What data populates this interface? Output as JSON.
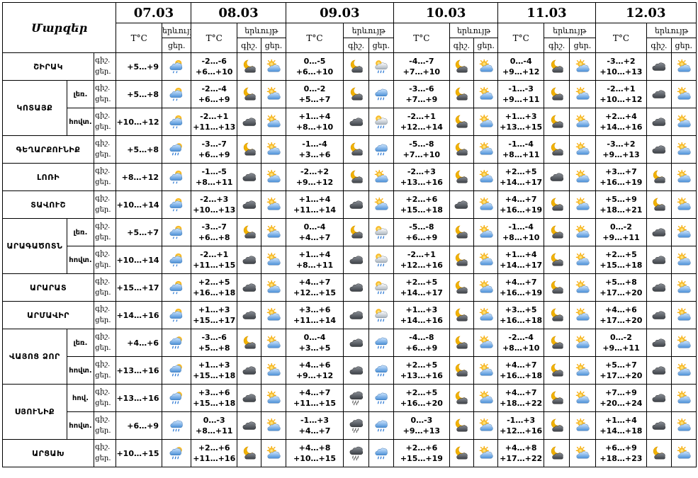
{
  "header": {
    "title": "Մարզեր",
    "tc_label": "T°C",
    "precip_label": "երևույթ",
    "night_label": "գիշ.",
    "day_label": "ցեր."
  },
  "dates": [
    "07.03",
    "08.03",
    "09.03",
    "10.03",
    "11.03",
    "12.03"
  ],
  "day1_precip": {
    "line1": "երևույթ",
    "line2": "ցեր."
  },
  "rows": [
    {
      "region": "ՇԻՐԱԿ",
      "sub": "",
      "d1": {
        "temp": "+5…+9",
        "icon": "partly-cloudy-rain-icon"
      },
      "days": [
        {
          "t_night": "-2…-6",
          "t_day": "+6…+10",
          "icons": [
            "moon-cloud-icon",
            "sun-cloud-icon"
          ]
        },
        {
          "t_night": "0…-5",
          "t_day": "+6…+10",
          "icons": [
            "moon-cloud-icon",
            "sun-cloud-rain-icon"
          ]
        },
        {
          "t_night": "-4…-7",
          "t_day": "+7…+10",
          "icons": [
            "moon-cloud-icon",
            "sun-cloud-icon"
          ]
        },
        {
          "t_night": "0…-4",
          "t_day": "+9…+12",
          "icons": [
            "moon-cloud-icon",
            "sun-cloud-icon"
          ]
        },
        {
          "t_night": "-3…+2",
          "t_day": "+10…+13",
          "icons": [
            "cloud-icon",
            "sun-cloud-icon"
          ]
        }
      ]
    },
    {
      "region": "ԿՈՏԱՅՔ",
      "sub": "լեռ.",
      "d1": {
        "temp": "+5…+8",
        "icon": "partly-cloudy-rain-icon"
      },
      "days": [
        {
          "t_night": "-2…-4",
          "t_day": "+6…+9",
          "icons": [
            "moon-cloud-icon",
            "sun-cloud-icon"
          ]
        },
        {
          "t_night": "0…-2",
          "t_day": "+5…+7",
          "icons": [
            "moon-cloud-icon",
            "rain-cloud-icon"
          ]
        },
        {
          "t_night": "-3…-6",
          "t_day": "+7…+9",
          "icons": [
            "moon-cloud-icon",
            "sun-cloud-icon"
          ]
        },
        {
          "t_night": "-1…-3",
          "t_day": "+9…+11",
          "icons": [
            "moon-cloud-icon",
            "sun-cloud-icon"
          ]
        },
        {
          "t_night": "-2…+1",
          "t_day": "+10…+12",
          "icons": [
            "cloud-icon",
            "sun-cloud-icon"
          ]
        }
      ]
    },
    {
      "region": "",
      "sub": "հովտ.",
      "d1": {
        "temp": "+10…+12",
        "icon": "partly-cloudy-rain-icon"
      },
      "days": [
        {
          "t_night": "-2…+1",
          "t_day": "+11…+13",
          "icons": [
            "cloud-icon",
            "sun-cloud-icon"
          ]
        },
        {
          "t_night": "+1…+4",
          "t_day": "+8…+10",
          "icons": [
            "cloud-icon",
            "sun-cloud-rain-icon"
          ]
        },
        {
          "t_night": "-2…+1",
          "t_day": "+12…+14",
          "icons": [
            "moon-cloud-icon",
            "sun-cloud-icon"
          ]
        },
        {
          "t_night": "+1…+3",
          "t_day": "+13…+15",
          "icons": [
            "moon-cloud-icon",
            "sun-cloud-icon"
          ]
        },
        {
          "t_night": "+2…+4",
          "t_day": "+14…+16",
          "icons": [
            "cloud-icon",
            "sun-cloud-icon"
          ]
        }
      ]
    },
    {
      "region": "ԳԵՂԱՐՔՈՒՆԻՔ",
      "sub": "",
      "d1": {
        "temp": "+5…+8",
        "icon": "sun-rain-icon"
      },
      "days": [
        {
          "t_night": "-3…-7",
          "t_day": "+6…+9",
          "icons": [
            "moon-cloud-icon",
            "sun-cloud-icon"
          ]
        },
        {
          "t_night": "-1…-4",
          "t_day": "+3…+6",
          "icons": [
            "moon-cloud-icon",
            "rain-cloud-icon"
          ]
        },
        {
          "t_night": "-5…-8",
          "t_day": "+7…+10",
          "icons": [
            "moon-cloud-icon",
            "sun-cloud-icon"
          ]
        },
        {
          "t_night": "-1…-4",
          "t_day": "+8…+11",
          "icons": [
            "moon-cloud-icon",
            "sun-cloud-icon"
          ]
        },
        {
          "t_night": "-3…+2",
          "t_day": "+9…+13",
          "icons": [
            "cloud-icon",
            "sun-cloud-icon"
          ]
        }
      ]
    },
    {
      "region": "ԼՈՌԻ",
      "sub": "",
      "d1": {
        "temp": "+8…+12",
        "icon": "partly-cloudy-rain-icon"
      },
      "days": [
        {
          "t_night": "-1…-5",
          "t_day": "+8…+11",
          "icons": [
            "cloud-icon",
            "sun-cloud-icon"
          ]
        },
        {
          "t_night": "-2…+2",
          "t_day": "+9…+12",
          "icons": [
            "moon-cloud-icon",
            "sun-cloud-icon"
          ]
        },
        {
          "t_night": "-2…+3",
          "t_day": "+13…+16",
          "icons": [
            "moon-cloud-icon",
            "sun-cloud-icon"
          ]
        },
        {
          "t_night": "+2…+5",
          "t_day": "+14…+17",
          "icons": [
            "cloud-icon",
            "sun-cloud-icon"
          ]
        },
        {
          "t_night": "+3…+7",
          "t_day": "+16…+19",
          "icons": [
            "moon-cloud-icon",
            "sun-cloud-icon"
          ]
        }
      ]
    },
    {
      "region": "ՏԱՎՈՒՇ",
      "sub": "",
      "d1": {
        "temp": "+10…+14",
        "icon": "partly-cloudy-rain-icon"
      },
      "days": [
        {
          "t_night": "-2…+3",
          "t_day": "+10…+13",
          "icons": [
            "cloud-icon",
            "sun-cloud-icon"
          ]
        },
        {
          "t_night": "+1…+4",
          "t_day": "+11…+14",
          "icons": [
            "cloud-icon",
            "sun-cloud-icon"
          ]
        },
        {
          "t_night": "+2…+6",
          "t_day": "+15…+18",
          "icons": [
            "cloud-icon",
            "sun-cloud-icon"
          ]
        },
        {
          "t_night": "+4…+7",
          "t_day": "+16…+19",
          "icons": [
            "moon-cloud-icon",
            "sun-cloud-icon"
          ]
        },
        {
          "t_night": "+5…+9",
          "t_day": "+18…+21",
          "icons": [
            "moon-cloud-icon",
            "sun-cloud-icon"
          ]
        }
      ]
    },
    {
      "region": "ԱՐԱԳԱԾՈՏՆ",
      "sub": "լեռ.",
      "d1": {
        "temp": "+5…+7",
        "icon": "partly-cloudy-rain-icon"
      },
      "days": [
        {
          "t_night": "-3…-7",
          "t_day": "+6…+8",
          "icons": [
            "moon-cloud-icon",
            "sun-cloud-icon"
          ]
        },
        {
          "t_night": "0…-4",
          "t_day": "+4…+7",
          "icons": [
            "moon-cloud-icon",
            "sun-cloud-rain-icon"
          ]
        },
        {
          "t_night": "-5…-8",
          "t_day": "+6…+9",
          "icons": [
            "moon-cloud-icon",
            "sun-cloud-icon"
          ]
        },
        {
          "t_night": "-1…-4",
          "t_day": "+8…+10",
          "icons": [
            "moon-cloud-icon",
            "sun-cloud-icon"
          ]
        },
        {
          "t_night": "0…-2",
          "t_day": "+9…+11",
          "icons": [
            "cloud-icon",
            "sun-cloud-icon"
          ]
        }
      ]
    },
    {
      "region": "",
      "sub": "հովտ.",
      "d1": {
        "temp": "+10…+14",
        "icon": "partly-cloudy-rain-icon"
      },
      "days": [
        {
          "t_night": "-2…+1",
          "t_day": "+11…+15",
          "icons": [
            "cloud-icon",
            "sun-cloud-icon"
          ]
        },
        {
          "t_night": "+1…+4",
          "t_day": "+8…+11",
          "icons": [
            "cloud-icon",
            "sun-cloud-rain-icon"
          ]
        },
        {
          "t_night": "-2…+1",
          "t_day": "+12…+16",
          "icons": [
            "moon-cloud-icon",
            "sun-cloud-icon"
          ]
        },
        {
          "t_night": "+1…+4",
          "t_day": "+14…+17",
          "icons": [
            "moon-cloud-icon",
            "sun-cloud-icon"
          ]
        },
        {
          "t_night": "+2…+5",
          "t_day": "+15…+18",
          "icons": [
            "cloud-icon",
            "sun-cloud-icon"
          ]
        }
      ]
    },
    {
      "region": "ԱՐԱՐԱՏ",
      "sub": "",
      "d1": {
        "temp": "+15…+17",
        "icon": "partly-cloudy-rain-icon"
      },
      "days": [
        {
          "t_night": "+2…+5",
          "t_day": "+16…+18",
          "icons": [
            "cloud-icon",
            "sun-cloud-icon"
          ]
        },
        {
          "t_night": "+4…+7",
          "t_day": "+12…+15",
          "icons": [
            "cloud-icon",
            "sun-cloud-rain-icon"
          ]
        },
        {
          "t_night": "+2…+5",
          "t_day": "+14…+17",
          "icons": [
            "moon-cloud-icon",
            "sun-cloud-icon"
          ]
        },
        {
          "t_night": "+4…+7",
          "t_day": "+16…+19",
          "icons": [
            "moon-cloud-icon",
            "sun-cloud-icon"
          ]
        },
        {
          "t_night": "+5…+8",
          "t_day": "+17…+20",
          "icons": [
            "cloud-icon",
            "sun-cloud-icon"
          ]
        }
      ]
    },
    {
      "region": "ԱՐՄԱՎԻՐ",
      "sub": "",
      "d1": {
        "temp": "+14…+16",
        "icon": "partly-cloudy-rain-icon"
      },
      "days": [
        {
          "t_night": "+1…+3",
          "t_day": "+15…+17",
          "icons": [
            "cloud-icon",
            "sun-cloud-icon"
          ]
        },
        {
          "t_night": "+3…+6",
          "t_day": "+11…+14",
          "icons": [
            "cloud-icon",
            "sun-cloud-rain-icon"
          ]
        },
        {
          "t_night": "+1…+3",
          "t_day": "+14…+16",
          "icons": [
            "moon-cloud-icon",
            "sun-cloud-icon"
          ]
        },
        {
          "t_night": "+3…+5",
          "t_day": "+16…+18",
          "icons": [
            "moon-cloud-icon",
            "sun-cloud-icon"
          ]
        },
        {
          "t_night": "+4…+6",
          "t_day": "+17…+20",
          "icons": [
            "cloud-icon",
            "sun-cloud-icon"
          ]
        }
      ]
    },
    {
      "region": "ՎԱՅՈՑ ՁՈՐ",
      "sub": "լեռ.",
      "d1": {
        "temp": "+4…+6",
        "icon": "sun-rain-icon"
      },
      "days": [
        {
          "t_night": "-3…-6",
          "t_day": "+5…+8",
          "icons": [
            "moon-cloud-icon",
            "sun-cloud-icon"
          ]
        },
        {
          "t_night": "0…-4",
          "t_day": "+3…+5",
          "icons": [
            "cloud-icon",
            "rain-cloud-icon"
          ]
        },
        {
          "t_night": "-4…-8",
          "t_day": "+6…+9",
          "icons": [
            "moon-cloud-icon",
            "sun-cloud-icon"
          ]
        },
        {
          "t_night": "-2…-4",
          "t_day": "+8…+10",
          "icons": [
            "moon-cloud-icon",
            "sun-cloud-icon"
          ]
        },
        {
          "t_night": "0…-2",
          "t_day": "+9…+11",
          "icons": [
            "cloud-icon",
            "sun-cloud-icon"
          ]
        }
      ]
    },
    {
      "region": "",
      "sub": "հովտ.",
      "d1": {
        "temp": "+13…+16",
        "icon": "sun-rain-icon"
      },
      "days": [
        {
          "t_night": "+1…+3",
          "t_day": "+15…+18",
          "icons": [
            "cloud-icon",
            "sun-cloud-icon"
          ]
        },
        {
          "t_night": "+4…+6",
          "t_day": "+9…+12",
          "icons": [
            "cloud-icon",
            "rain-cloud-icon"
          ]
        },
        {
          "t_night": "+2…+5",
          "t_day": "+13…+16",
          "icons": [
            "moon-cloud-icon",
            "sun-cloud-icon"
          ]
        },
        {
          "t_night": "+4…+7",
          "t_day": "+16…+18",
          "icons": [
            "moon-cloud-icon",
            "sun-cloud-icon"
          ]
        },
        {
          "t_night": "+5…+7",
          "t_day": "+17…+20",
          "icons": [
            "cloud-icon",
            "sun-cloud-icon"
          ]
        }
      ]
    },
    {
      "region": "ՍՅՈՒՆԻՔ",
      "sub": "հով.",
      "d1": {
        "temp": "+13…+16",
        "icon": "sun-rain-icon"
      },
      "days": [
        {
          "t_night": "+3…+6",
          "t_day": "+15…+18",
          "icons": [
            "cloud-icon",
            "sun-cloud-icon"
          ]
        },
        {
          "t_night": "+4…+7",
          "t_day": "+11…+15",
          "icons": [
            "storm-cloud-icon",
            "rain-cloud-icon"
          ]
        },
        {
          "t_night": "+2…+5",
          "t_day": "+16…+20",
          "icons": [
            "moon-cloud-icon",
            "sun-cloud-icon"
          ]
        },
        {
          "t_night": "+4…+7",
          "t_day": "+18…+22",
          "icons": [
            "moon-cloud-icon",
            "sun-cloud-icon"
          ]
        },
        {
          "t_night": "+7…+9",
          "t_day": "+20…+24",
          "icons": [
            "cloud-icon",
            "sun-cloud-icon"
          ]
        }
      ]
    },
    {
      "region": "",
      "sub": "հովտ.",
      "d1": {
        "temp": "+6…+9",
        "icon": "rain-cloud-icon"
      },
      "days": [
        {
          "t_night": "0…-3",
          "t_day": "+8…+11",
          "icons": [
            "cloud-icon",
            "sun-cloud-icon"
          ]
        },
        {
          "t_night": "-1…+3",
          "t_day": "+4…+7",
          "icons": [
            "storm-cloud-icon",
            "rain-cloud-icon"
          ]
        },
        {
          "t_night": "0…-3",
          "t_day": "+9…+13",
          "icons": [
            "moon-cloud-icon",
            "sun-cloud-icon"
          ]
        },
        {
          "t_night": "-1…+3",
          "t_day": "+12…+16",
          "icons": [
            "moon-cloud-icon",
            "sun-cloud-icon"
          ]
        },
        {
          "t_night": "+1…+4",
          "t_day": "+14…+18",
          "icons": [
            "cloud-icon",
            "sun-cloud-icon"
          ]
        }
      ]
    },
    {
      "region": "ԱՐՑԱԽ",
      "sub": "",
      "d1": {
        "temp": "+10…+15",
        "icon": "sun-rain-icon"
      },
      "days": [
        {
          "t_night": "+2…+6",
          "t_day": "+11…+16",
          "icons": [
            "moon-cloud-icon",
            "sun-cloud-icon"
          ]
        },
        {
          "t_night": "+4…+8",
          "t_day": "+10…+15",
          "icons": [
            "storm-cloud-icon",
            "rain-cloud-icon"
          ]
        },
        {
          "t_night": "+2…+6",
          "t_day": "+15…+19",
          "icons": [
            "moon-cloud-icon",
            "sun-cloud-icon"
          ]
        },
        {
          "t_night": "+4…+8",
          "t_day": "+17…+22",
          "icons": [
            "moon-cloud-icon",
            "sun-cloud-icon"
          ]
        },
        {
          "t_night": "+6…+9",
          "t_day": "+18…+23",
          "icons": [
            "moon-cloud-icon",
            "sun-cloud-icon"
          ]
        }
      ]
    }
  ]
}
